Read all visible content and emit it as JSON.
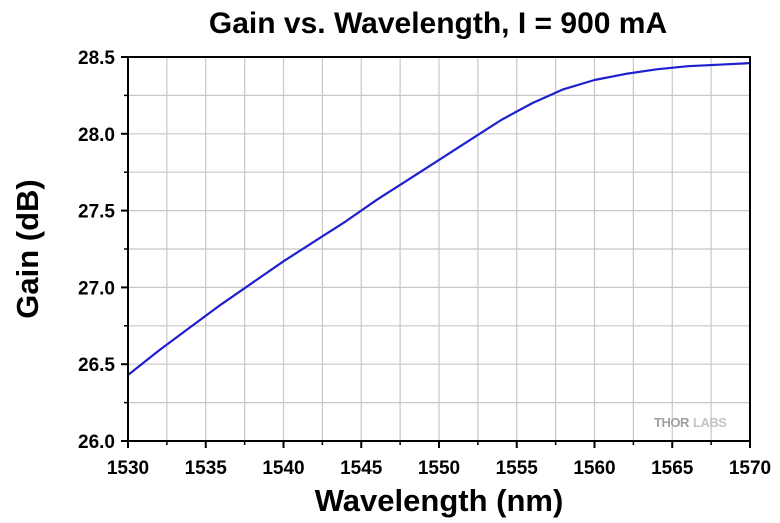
{
  "chart_data": {
    "type": "line",
    "title": "Gain vs. Wavelength, I = 900 mA",
    "xlabel": "Wavelength (nm)",
    "ylabel": "Gain (dB)",
    "xlim": [
      1530,
      1570
    ],
    "ylim": [
      26.0,
      28.5
    ],
    "xticks": [
      1530,
      1535,
      1540,
      1545,
      1550,
      1555,
      1560,
      1565,
      1570
    ],
    "yticks": [
      26.0,
      26.5,
      27.0,
      27.5,
      28.0,
      28.5
    ],
    "xtick_labels": [
      "1530",
      "1535",
      "1540",
      "1545",
      "1550",
      "1555",
      "1560",
      "1565",
      "1570"
    ],
    "ytick_labels": [
      "26.0",
      "26.5",
      "27.0",
      "27.5",
      "28.0",
      "28.5"
    ],
    "grid": true,
    "series": [
      {
        "color": "#1f1fd0",
        "x": [
          1530,
          1532,
          1534,
          1536,
          1538,
          1540,
          1542,
          1544,
          1546,
          1548,
          1550,
          1552,
          1554,
          1556,
          1558,
          1560,
          1562,
          1564,
          1566,
          1568,
          1570
        ],
        "y": [
          26.43,
          26.59,
          26.74,
          26.89,
          27.03,
          27.17,
          27.3,
          27.43,
          27.57,
          27.7,
          27.83,
          27.96,
          28.09,
          28.2,
          28.29,
          28.35,
          28.39,
          28.42,
          28.44,
          28.45,
          28.46
        ]
      }
    ]
  },
  "watermark": {
    "thor": "THOR",
    "labs": "LABS"
  },
  "colors": {
    "line": "#1f1fd0",
    "grid": "#c8c8c8",
    "axis": "#000000"
  }
}
